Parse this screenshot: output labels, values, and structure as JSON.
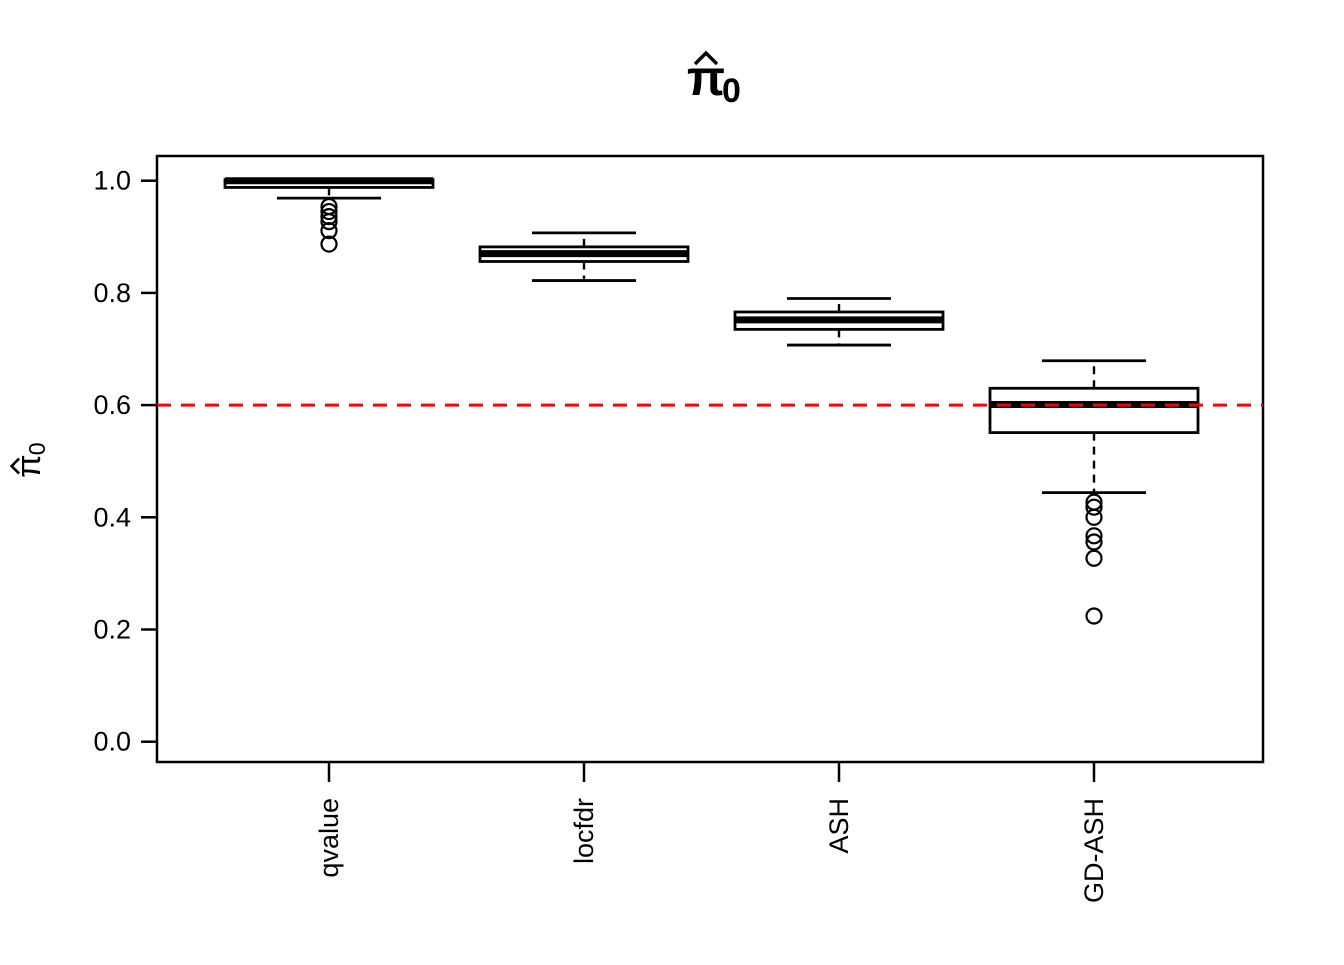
{
  "figure": {
    "title": {
      "display": "π̂₀",
      "pi": "π",
      "hat": "^",
      "subscript": "0"
    },
    "y_axis_label": {
      "display": "π̂₀",
      "pi": "π",
      "hat": "^",
      "subscript": "0"
    },
    "colors": {
      "foreground": "#000000",
      "background": "#ffffff",
      "reference_line": "#ff0000"
    }
  },
  "chart_data": {
    "type": "boxplot",
    "title": "π̂₀",
    "ylabel": "π̂₀",
    "xlabel": "",
    "categories": [
      "qvalue",
      "locfdr",
      "ASH",
      "GD-ASH"
    ],
    "y_ticks": [
      0.0,
      0.2,
      0.4,
      0.6,
      0.8,
      1.0
    ],
    "y_tick_labels": [
      "0.0",
      "0.2",
      "0.4",
      "0.6",
      "0.8",
      "1.0"
    ],
    "ylim": [
      -0.036,
      1.044
    ],
    "grid": false,
    "legend": "none",
    "reference_line": {
      "y": 0.6,
      "color": "#ff0000",
      "style": "dashed"
    },
    "boxes": [
      {
        "label": "qvalue",
        "q1": 0.988,
        "median": 1.0,
        "q3": 1.002,
        "whisker_low": 0.969,
        "whisker_high": 1.002,
        "outliers": [
          0.954,
          0.945,
          0.936,
          0.927,
          0.911,
          0.887
        ]
      },
      {
        "label": "locfdr",
        "q1": 0.856,
        "median": 0.87,
        "q3": 0.882,
        "whisker_low": 0.822,
        "whisker_high": 0.907,
        "outliers": []
      },
      {
        "label": "ASH",
        "q1": 0.735,
        "median": 0.752,
        "q3": 0.766,
        "whisker_low": 0.707,
        "whisker_high": 0.79,
        "outliers": []
      },
      {
        "label": "GD-ASH",
        "q1": 0.551,
        "median": 0.601,
        "q3": 0.63,
        "whisker_low": 0.444,
        "whisker_high": 0.679,
        "outliers": [
          0.427,
          0.418,
          0.4,
          0.367,
          0.356,
          0.327,
          0.224
        ]
      }
    ]
  }
}
